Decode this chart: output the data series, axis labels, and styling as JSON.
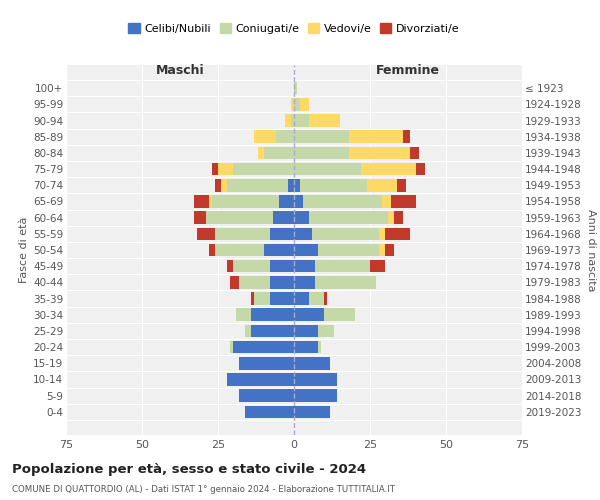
{
  "age_groups": [
    "0-4",
    "5-9",
    "10-14",
    "15-19",
    "20-24",
    "25-29",
    "30-34",
    "35-39",
    "40-44",
    "45-49",
    "50-54",
    "55-59",
    "60-64",
    "65-69",
    "70-74",
    "75-79",
    "80-84",
    "85-89",
    "90-94",
    "95-99",
    "100+"
  ],
  "birth_years": [
    "2019-2023",
    "2014-2018",
    "2009-2013",
    "2004-2008",
    "1999-2003",
    "1994-1998",
    "1989-1993",
    "1984-1988",
    "1979-1983",
    "1974-1978",
    "1969-1973",
    "1964-1968",
    "1959-1963",
    "1954-1958",
    "1949-1953",
    "1944-1948",
    "1939-1943",
    "1934-1938",
    "1929-1933",
    "1924-1928",
    "≤ 1923"
  ],
  "maschi": {
    "celibe": [
      16,
      18,
      22,
      18,
      20,
      14,
      14,
      8,
      8,
      8,
      10,
      8,
      7,
      5,
      2,
      0,
      0,
      0,
      0,
      0,
      0
    ],
    "coniugato": [
      0,
      0,
      0,
      0,
      1,
      2,
      5,
      5,
      10,
      12,
      16,
      18,
      22,
      22,
      20,
      20,
      10,
      6,
      1,
      0,
      0
    ],
    "vedovo": [
      0,
      0,
      0,
      0,
      0,
      0,
      0,
      0,
      0,
      0,
      0,
      0,
      0,
      1,
      2,
      5,
      2,
      7,
      2,
      1,
      0
    ],
    "divorziato": [
      0,
      0,
      0,
      0,
      0,
      0,
      0,
      1,
      3,
      2,
      2,
      6,
      4,
      5,
      2,
      2,
      0,
      0,
      0,
      0,
      0
    ]
  },
  "femmine": {
    "nubile": [
      12,
      14,
      14,
      12,
      8,
      8,
      10,
      5,
      7,
      7,
      8,
      6,
      5,
      3,
      2,
      0,
      0,
      0,
      0,
      0,
      0
    ],
    "coniugata": [
      0,
      0,
      0,
      0,
      1,
      5,
      10,
      5,
      20,
      18,
      20,
      22,
      26,
      26,
      22,
      22,
      18,
      18,
      5,
      2,
      1
    ],
    "vedova": [
      0,
      0,
      0,
      0,
      0,
      0,
      0,
      0,
      0,
      0,
      2,
      2,
      2,
      3,
      10,
      18,
      20,
      18,
      10,
      3,
      0
    ],
    "divorziata": [
      0,
      0,
      0,
      0,
      0,
      0,
      0,
      1,
      0,
      5,
      3,
      8,
      3,
      8,
      3,
      3,
      3,
      2,
      0,
      0,
      0
    ]
  },
  "colors": {
    "celibe": "#4472c4",
    "coniugato": "#c5d9a8",
    "vedovo": "#ffd966",
    "divorziato": "#c0392b"
  },
  "title": "Popolazione per età, sesso e stato civile - 2024",
  "subtitle": "COMUNE DI QUATTORDIO (AL) - Dati ISTAT 1° gennaio 2024 - Elaborazione TUTTITALIA.IT",
  "xlabel_left": "Maschi",
  "xlabel_right": "Femmine",
  "ylabel_left": "Fasce di età",
  "ylabel_right": "Anni di nascita",
  "xlim": 75,
  "background_color": "#ffffff",
  "grid_color": "#cccccc",
  "legend_labels": [
    "Celibi/Nubili",
    "Coniugati/e",
    "Vedovi/e",
    "Divorziati/e"
  ]
}
